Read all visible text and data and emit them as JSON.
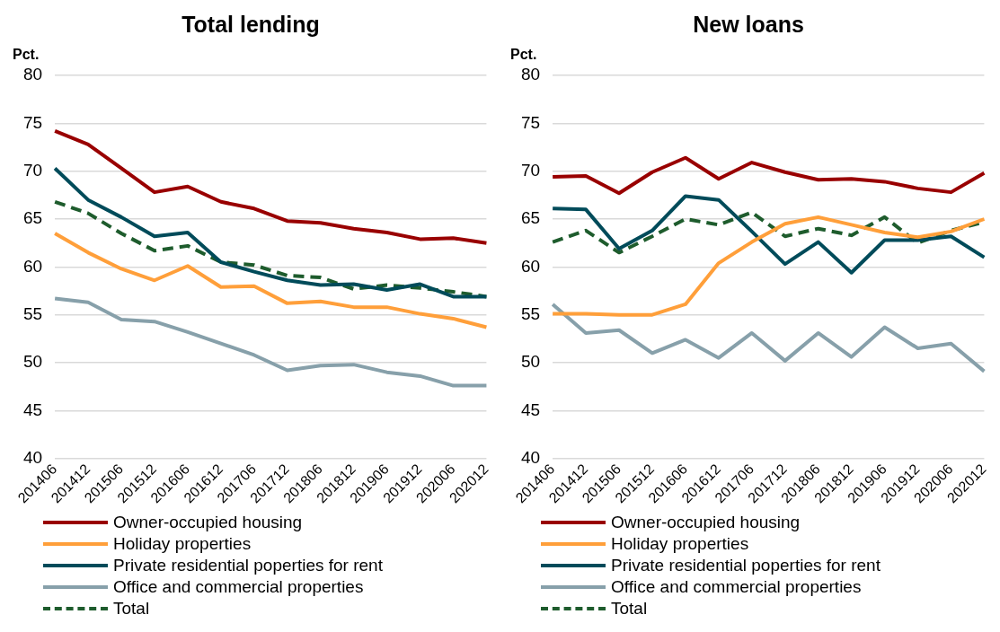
{
  "chart_data": [
    {
      "type": "line",
      "title": "Total lending",
      "ylabel": "Pct.",
      "categories": [
        "201406",
        "201412",
        "201506",
        "201512",
        "201606",
        "201612",
        "201706",
        "201712",
        "201806",
        "201812",
        "201906",
        "201912",
        "202006",
        "202012"
      ],
      "ylim": [
        40,
        80
      ],
      "yticks": [
        40,
        45,
        50,
        55,
        60,
        65,
        70,
        75,
        80
      ],
      "grid": "y",
      "legend": "bottom",
      "marker": "none",
      "series": [
        {
          "name": "Owner-occupied housing",
          "color": "#990000",
          "values": [
            74.2,
            72.8,
            70.3,
            67.8,
            68.4,
            66.8,
            66.1,
            64.8,
            64.6,
            64.0,
            63.6,
            62.9,
            63.0,
            62.5
          ]
        },
        {
          "name": "Holiday properties",
          "color": "#ff9f3a",
          "values": [
            63.5,
            61.5,
            59.8,
            58.6,
            60.1,
            57.9,
            58.0,
            56.2,
            56.4,
            55.8,
            55.8,
            55.1,
            54.6,
            53.7
          ]
        },
        {
          "name": "Private residential poperties for rent",
          "color": "#004b5a",
          "values": [
            70.3,
            67.0,
            65.2,
            63.2,
            63.6,
            60.5,
            59.5,
            58.6,
            58.1,
            58.2,
            57.6,
            58.2,
            56.9,
            56.9
          ]
        },
        {
          "name": "Office and commercial properties",
          "color": "#87a0aa",
          "values": [
            56.7,
            56.3,
            54.5,
            54.3,
            53.2,
            52.0,
            50.8,
            49.2,
            49.7,
            49.8,
            49.0,
            48.6,
            47.6,
            47.6
          ]
        },
        {
          "name": "Total",
          "color": "#1e5c2d",
          "line_style": "dashed",
          "values": [
            66.8,
            65.6,
            63.5,
            61.7,
            62.2,
            60.5,
            60.2,
            59.1,
            58.9,
            57.7,
            58.1,
            57.8,
            57.4,
            56.9
          ]
        }
      ]
    },
    {
      "type": "line",
      "title": "New loans",
      "ylabel": "Pct.",
      "categories": [
        "201406",
        "201412",
        "201506",
        "201512",
        "201606",
        "201612",
        "201706",
        "201712",
        "201806",
        "201812",
        "201906",
        "201912",
        "202006",
        "202012"
      ],
      "ylim": [
        40,
        80
      ],
      "yticks": [
        40,
        45,
        50,
        55,
        60,
        65,
        70,
        75,
        80
      ],
      "grid": "y",
      "legend": "bottom",
      "marker": "none",
      "series": [
        {
          "name": "Owner-occupied housing",
          "color": "#990000",
          "values": [
            69.4,
            69.5,
            67.7,
            69.9,
            71.4,
            69.2,
            70.9,
            69.9,
            69.1,
            69.2,
            68.9,
            68.2,
            67.8,
            69.8
          ]
        },
        {
          "name": "Holiday properties",
          "color": "#ff9f3a",
          "values": [
            55.1,
            55.1,
            55.0,
            55.0,
            56.1,
            60.4,
            62.6,
            64.5,
            65.2,
            64.4,
            63.6,
            63.1,
            63.7,
            65.0
          ]
        },
        {
          "name": "Private residential poperties for rent",
          "color": "#004b5a",
          "values": [
            66.1,
            66.0,
            61.9,
            63.8,
            67.4,
            67.0,
            63.7,
            60.3,
            62.6,
            59.4,
            62.8,
            62.8,
            63.2,
            61.0
          ]
        },
        {
          "name": "Office and commercial properties",
          "color": "#87a0aa",
          "values": [
            56.1,
            53.1,
            53.4,
            51.0,
            52.4,
            50.5,
            53.1,
            50.2,
            53.1,
            50.6,
            53.7,
            51.5,
            52.0,
            49.1
          ]
        },
        {
          "name": "Total",
          "color": "#1e5c2d",
          "line_style": "dashed",
          "values": [
            62.6,
            63.8,
            61.5,
            63.2,
            65.0,
            64.4,
            65.7,
            63.2,
            64.0,
            63.3,
            65.2,
            62.5,
            63.8,
            64.7
          ]
        }
      ]
    }
  ]
}
